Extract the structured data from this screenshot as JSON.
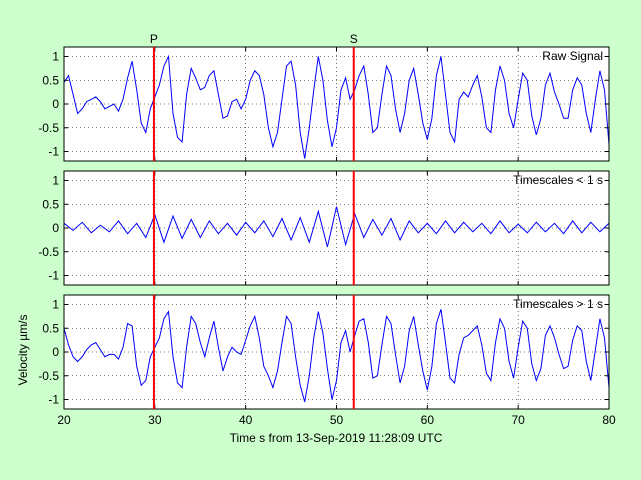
{
  "figure": {
    "background": "#ccffcc",
    "xlabel": "Time s from 13-Sep-2019 11:28:09 UTC",
    "ylabel": "Velocity µm/s",
    "phase_markers": [
      {
        "label": "P",
        "t": 29.9
      },
      {
        "label": "S",
        "t": 51.9
      }
    ],
    "marker_color": "#ff0000",
    "line_color": "#0000ff"
  },
  "chart_data": [
    {
      "type": "line",
      "title": "Raw Signal",
      "xlim": [
        20,
        80
      ],
      "ylim": [
        -1.2,
        1.2
      ],
      "xticks": [
        20,
        30,
        40,
        50,
        60,
        70,
        80
      ],
      "yticks": [
        -1,
        -0.5,
        0,
        0.5,
        1
      ],
      "ytick_labels": [
        "-1",
        "-0.5",
        "0",
        "0.5",
        "1"
      ],
      "show_xtick_labels": false,
      "grid": true,
      "series": [
        {
          "x": [
            20.0,
            20.5,
            21.0,
            21.5,
            22.0,
            22.5,
            23.0,
            23.5,
            24.0,
            24.5,
            25.0,
            25.5,
            26.0,
            26.5,
            27.0,
            27.5,
            28.0,
            28.5,
            29.0,
            29.5,
            30.0,
            30.5,
            31.0,
            31.5,
            32.0,
            32.5,
            33.0,
            33.5,
            34.0,
            34.5,
            35.0,
            35.5,
            36.0,
            36.5,
            37.0,
            37.5,
            38.0,
            38.5,
            39.0,
            39.5,
            40.0,
            40.5,
            41.0,
            41.5,
            42.0,
            42.5,
            43.0,
            43.5,
            44.0,
            44.5,
            45.0,
            45.5,
            46.0,
            46.5,
            47.0,
            47.5,
            48.0,
            48.5,
            49.0,
            49.5,
            50.0,
            50.5,
            51.0,
            51.5,
            52.0,
            52.5,
            53.0,
            53.5,
            54.0,
            54.5,
            55.0,
            55.5,
            56.0,
            56.5,
            57.0,
            57.5,
            58.0,
            58.5,
            59.0,
            59.5,
            60.0,
            60.5,
            61.0,
            61.5,
            62.0,
            62.5,
            63.0,
            63.5,
            64.0,
            64.5,
            65.0,
            65.5,
            66.0,
            66.5,
            67.0,
            67.5,
            68.0,
            68.5,
            69.0,
            69.5,
            70.0,
            70.5,
            71.0,
            71.5,
            72.0,
            72.5,
            73.0,
            73.5,
            74.0,
            74.5,
            75.0,
            75.5,
            76.0,
            76.5,
            77.0,
            77.5,
            78.0,
            78.5,
            79.0,
            79.5,
            80.0
          ],
          "y": [
            0.45,
            0.6,
            0.2,
            -0.2,
            -0.1,
            0.05,
            0.1,
            0.15,
            0.05,
            -0.1,
            -0.05,
            0.0,
            -0.15,
            0.1,
            0.55,
            0.9,
            0.3,
            -0.4,
            -0.6,
            -0.1,
            0.15,
            0.4,
            0.8,
            1.0,
            -0.2,
            -0.7,
            -0.8,
            0.2,
            0.75,
            0.55,
            0.3,
            0.35,
            0.6,
            0.7,
            0.2,
            -0.3,
            -0.25,
            0.05,
            0.1,
            -0.1,
            0.1,
            0.5,
            0.7,
            0.6,
            0.2,
            -0.5,
            -0.9,
            -0.6,
            0.1,
            0.8,
            0.9,
            0.4,
            -0.6,
            -1.15,
            -0.5,
            0.3,
            1.0,
            0.5,
            -0.35,
            -0.9,
            -0.5,
            0.3,
            0.55,
            0.1,
            0.3,
            0.6,
            0.8,
            0.2,
            -0.6,
            -0.5,
            0.2,
            0.8,
            0.6,
            -0.1,
            -0.6,
            -0.2,
            0.5,
            0.75,
            0.2,
            -0.4,
            -0.75,
            -0.3,
            0.6,
            1.0,
            0.2,
            -0.6,
            -0.8,
            0.1,
            0.25,
            0.15,
            0.4,
            0.6,
            0.15,
            -0.5,
            -0.6,
            0.3,
            0.8,
            0.5,
            -0.2,
            -0.5,
            0.1,
            0.65,
            0.5,
            -0.25,
            -0.65,
            -0.3,
            0.4,
            0.65,
            0.25,
            0.0,
            -0.3,
            -0.3,
            0.3,
            0.55,
            0.4,
            -0.2,
            -0.6,
            0.1,
            0.7,
            0.3,
            -0.85
          ]
        }
      ]
    },
    {
      "type": "line",
      "title": "Timescales < 1 s",
      "xlim": [
        20,
        80
      ],
      "ylim": [
        -1.2,
        1.2
      ],
      "xticks": [
        20,
        30,
        40,
        50,
        60,
        70,
        80
      ],
      "yticks": [
        -1,
        -0.5,
        0,
        0.5,
        1
      ],
      "ytick_labels": [
        "-1",
        "-0.5",
        "0",
        "0.5",
        "1"
      ],
      "show_xtick_labels": false,
      "grid": true,
      "series": [
        {
          "x": [
            20.0,
            21.0,
            22.0,
            23.0,
            24.0,
            25.0,
            26.0,
            27.0,
            28.0,
            29.0,
            30.0,
            31.0,
            32.0,
            33.0,
            34.0,
            35.0,
            36.0,
            37.0,
            38.0,
            39.0,
            40.0,
            41.0,
            42.0,
            43.0,
            44.0,
            45.0,
            46.0,
            47.0,
            48.0,
            49.0,
            50.0,
            51.0,
            52.0,
            53.0,
            54.0,
            55.0,
            56.0,
            57.0,
            58.0,
            59.0,
            60.0,
            61.0,
            62.0,
            63.0,
            64.0,
            65.0,
            66.0,
            67.0,
            68.0,
            69.0,
            70.0,
            71.0,
            72.0,
            73.0,
            74.0,
            75.0,
            76.0,
            77.0,
            78.0,
            79.0,
            80.0
          ],
          "y": [
            0.1,
            -0.05,
            0.12,
            -0.1,
            0.06,
            -0.08,
            0.15,
            -0.12,
            0.1,
            -0.2,
            0.28,
            -0.3,
            0.25,
            -0.22,
            0.18,
            -0.2,
            0.15,
            -0.12,
            0.1,
            -0.15,
            0.12,
            -0.1,
            0.15,
            -0.18,
            0.2,
            -0.25,
            0.22,
            -0.3,
            0.35,
            -0.4,
            0.45,
            -0.35,
            0.3,
            -0.2,
            0.18,
            -0.15,
            0.2,
            -0.25,
            0.15,
            -0.1,
            0.1,
            -0.12,
            0.15,
            -0.1,
            0.12,
            -0.08,
            0.1,
            -0.12,
            0.15,
            -0.1,
            0.08,
            -0.1,
            0.12,
            -0.08,
            0.1,
            -0.12,
            0.15,
            -0.1,
            0.12,
            -0.08,
            0.1
          ]
        }
      ]
    },
    {
      "type": "line",
      "title": "Timescales > 1 s",
      "xlim": [
        20,
        80
      ],
      "ylim": [
        -1.2,
        1.2
      ],
      "xticks": [
        20,
        30,
        40,
        50,
        60,
        70,
        80
      ],
      "yticks": [
        -1,
        -0.5,
        0,
        0.5,
        1
      ],
      "ytick_labels": [
        "-1",
        "-0.5",
        "0",
        "0.5",
        "1"
      ],
      "show_xtick_labels": true,
      "grid": true,
      "series": [
        {
          "x": [
            20.0,
            20.5,
            21.0,
            21.5,
            22.0,
            22.5,
            23.0,
            23.5,
            24.0,
            24.5,
            25.0,
            25.5,
            26.0,
            26.5,
            27.0,
            27.5,
            28.0,
            28.5,
            29.0,
            29.5,
            30.0,
            30.5,
            31.0,
            31.5,
            32.0,
            32.5,
            33.0,
            33.5,
            34.0,
            34.5,
            35.0,
            35.5,
            36.0,
            36.5,
            37.0,
            37.5,
            38.0,
            38.5,
            39.0,
            39.5,
            40.0,
            40.5,
            41.0,
            41.5,
            42.0,
            42.5,
            43.0,
            43.5,
            44.0,
            44.5,
            45.0,
            45.5,
            46.0,
            46.5,
            47.0,
            47.5,
            48.0,
            48.5,
            49.0,
            49.5,
            50.0,
            50.5,
            51.0,
            51.5,
            52.0,
            52.5,
            53.0,
            53.5,
            54.0,
            54.5,
            55.0,
            55.5,
            56.0,
            56.5,
            57.0,
            57.5,
            58.0,
            58.5,
            59.0,
            59.5,
            60.0,
            60.5,
            61.0,
            61.5,
            62.0,
            62.5,
            63.0,
            63.5,
            64.0,
            64.5,
            65.0,
            65.5,
            66.0,
            66.5,
            67.0,
            67.5,
            68.0,
            68.5,
            69.0,
            69.5,
            70.0,
            70.5,
            71.0,
            71.5,
            72.0,
            72.5,
            73.0,
            73.5,
            74.0,
            74.5,
            75.0,
            75.5,
            76.0,
            76.5,
            77.0,
            77.5,
            78.0,
            78.5,
            79.0,
            79.5,
            80.0
          ],
          "y": [
            0.5,
            0.15,
            -0.1,
            -0.2,
            -0.1,
            0.05,
            0.15,
            0.2,
            0.05,
            -0.1,
            -0.05,
            -0.05,
            -0.15,
            0.1,
            0.6,
            0.55,
            -0.3,
            -0.7,
            -0.6,
            -0.1,
            0.1,
            0.3,
            0.7,
            0.85,
            -0.1,
            -0.65,
            -0.75,
            0.1,
            0.75,
            0.6,
            0.2,
            -0.1,
            0.3,
            0.65,
            0.1,
            -0.4,
            -0.1,
            0.1,
            0.0,
            -0.05,
            0.25,
            0.55,
            0.75,
            0.3,
            -0.3,
            -0.5,
            -0.75,
            -0.4,
            0.2,
            0.75,
            0.6,
            -0.1,
            -0.7,
            -1.05,
            -0.5,
            0.3,
            0.85,
            0.4,
            -0.35,
            -1.0,
            -0.6,
            0.2,
            0.45,
            0.0,
            0.35,
            0.65,
            0.7,
            0.2,
            -0.55,
            -0.5,
            0.15,
            0.75,
            0.6,
            -0.05,
            -0.65,
            -0.3,
            0.45,
            0.75,
            0.15,
            -0.4,
            -0.8,
            -0.3,
            0.6,
            0.9,
            0.2,
            -0.55,
            -0.65,
            -0.05,
            0.3,
            0.35,
            0.45,
            0.55,
            0.15,
            -0.45,
            -0.6,
            0.2,
            0.7,
            0.5,
            -0.2,
            -0.55,
            0.1,
            0.65,
            0.5,
            -0.25,
            -0.6,
            -0.35,
            0.35,
            0.55,
            0.3,
            -0.05,
            -0.35,
            -0.3,
            0.25,
            0.55,
            0.45,
            -0.2,
            -0.6,
            0.05,
            0.7,
            0.3,
            -0.75
          ]
        }
      ]
    }
  ]
}
